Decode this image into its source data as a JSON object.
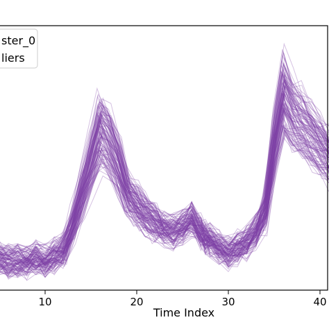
{
  "chart_data": {
    "type": "line",
    "title": "",
    "xlabel": "Time Index",
    "ylabel": "",
    "xlim": [
      -0.5,
      42
    ],
    "ylim": [
      0,
      1
    ],
    "x_ticks": [
      10,
      20,
      30,
      40
    ],
    "x_tick_labels": [
      "10",
      "20",
      "30",
      "40"
    ],
    "grid": false,
    "legend": {
      "placement": "top-left",
      "entries": [
        "ster_0",
        "liers"
      ]
    },
    "line_color": "#7b3fa6",
    "series_count": 110,
    "x": [
      0,
      1,
      2,
      3,
      4,
      5,
      6,
      7,
      8,
      9,
      10,
      11,
      12,
      13,
      14,
      15,
      16,
      17,
      18,
      19,
      20,
      21,
      22,
      23,
      24,
      25,
      26,
      27,
      27.5,
      28,
      29,
      30,
      31,
      32,
      33,
      34,
      35,
      36,
      37,
      38,
      39,
      40,
      41,
      42
    ],
    "representative_profile": [
      0.18,
      0.15,
      0.14,
      0.13,
      0.12,
      0.12,
      0.11,
      0.11,
      0.11,
      0.12,
      0.11,
      0.13,
      0.15,
      0.24,
      0.36,
      0.48,
      0.6,
      0.55,
      0.47,
      0.36,
      0.32,
      0.28,
      0.25,
      0.23,
      0.22,
      0.24,
      0.27,
      0.22,
      0.2,
      0.19,
      0.16,
      0.14,
      0.16,
      0.18,
      0.22,
      0.3,
      0.55,
      0.73,
      0.66,
      0.62,
      0.58,
      0.54,
      0.5,
      0.48
    ],
    "notes_series": "many overlapping semi-transparent purple lines of similar shape with peaks near x=16 and x=37-38"
  }
}
